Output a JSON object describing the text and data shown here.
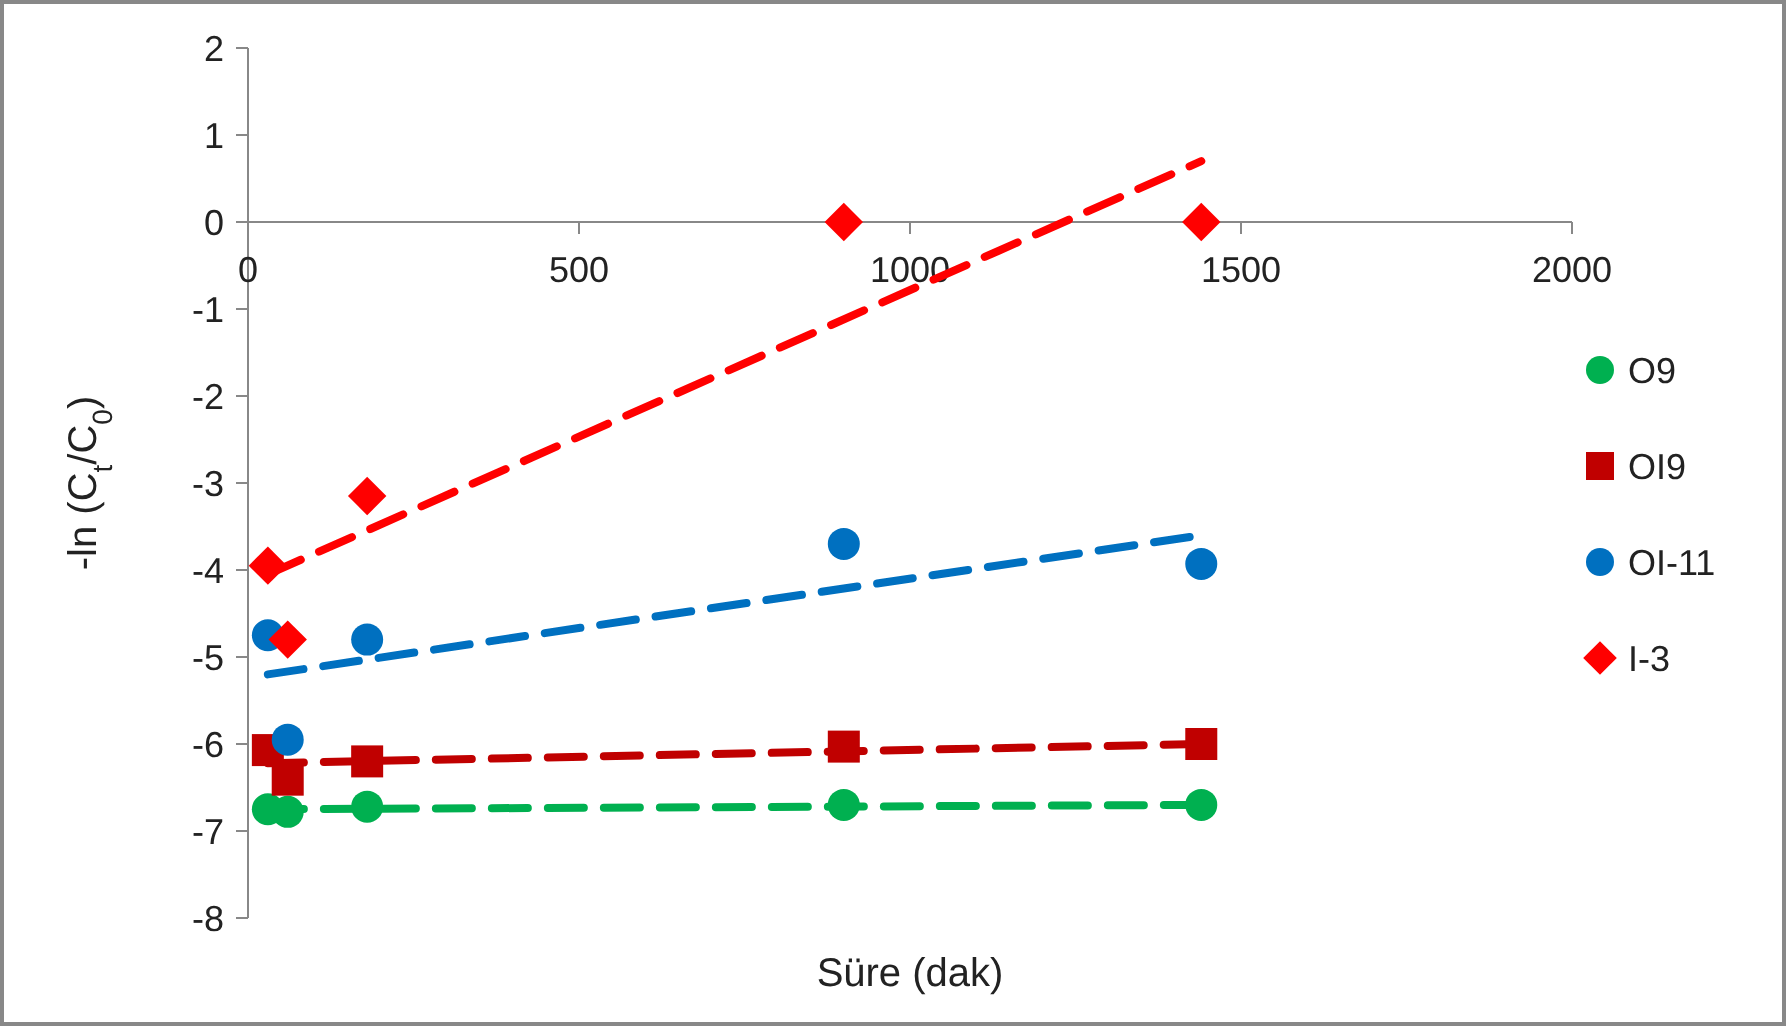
{
  "chart_data": {
    "type": "scatter",
    "xlabel": "Süre (dak)",
    "ylabel": "-ln (C$_{t}$/C$_{0}$)",
    "xlim": [
      0,
      2000
    ],
    "ylim": [
      -8,
      2
    ],
    "xticks": [
      0,
      500,
      1000,
      1500,
      2000
    ],
    "yticks": [
      -8,
      -7,
      -6,
      -5,
      -4,
      -3,
      -2,
      -1,
      0,
      1,
      2
    ],
    "grid": false,
    "legend": "right",
    "series": [
      {
        "name": "O9",
        "color": "#00b050",
        "marker": "circle",
        "x": [
          30,
          60,
          180,
          900,
          1440
        ],
        "values": [
          -6.75,
          -6.78,
          -6.72,
          -6.7,
          -6.7
        ]
      },
      {
        "name": "OI9",
        "color": "#c00000",
        "marker": "square",
        "x": [
          30,
          60,
          180,
          900,
          1440
        ],
        "values": [
          -6.07,
          -6.41,
          -6.2,
          -6.03,
          -6.0
        ]
      },
      {
        "name": "OI-11",
        "color": "#0070c0",
        "marker": "circle",
        "x": [
          30,
          60,
          180,
          900,
          1440
        ],
        "values": [
          -4.75,
          -5.95,
          -4.8,
          -3.7,
          -3.93
        ]
      },
      {
        "name": "I-3",
        "color": "#ff0000",
        "marker": "diamond",
        "x": [
          30,
          60,
          180,
          900,
          1440
        ],
        "values": [
          -3.95,
          -4.8,
          -3.15,
          0,
          0
        ]
      },
      {
        "type": "line",
        "color": "#00b050",
        "line_style": "dashed",
        "marker": "none",
        "x": [
          30,
          1440
        ],
        "values": [
          -6.75,
          -6.7
        ]
      },
      {
        "type": "line",
        "color": "#c00000",
        "line_style": "dashed",
        "marker": "none",
        "x": [
          30,
          1440
        ],
        "values": [
          -6.22,
          -6.0
        ]
      },
      {
        "type": "line",
        "color": "#0070c0",
        "line_style": "dashed",
        "marker": "none",
        "x": [
          30,
          1440
        ],
        "values": [
          -5.2,
          -3.6
        ]
      },
      {
        "type": "line",
        "color": "#ff0000",
        "line_style": "dashed",
        "marker": "none",
        "x": [
          30,
          1440
        ],
        "values": [
          -4.05,
          0.7
        ]
      }
    ]
  }
}
